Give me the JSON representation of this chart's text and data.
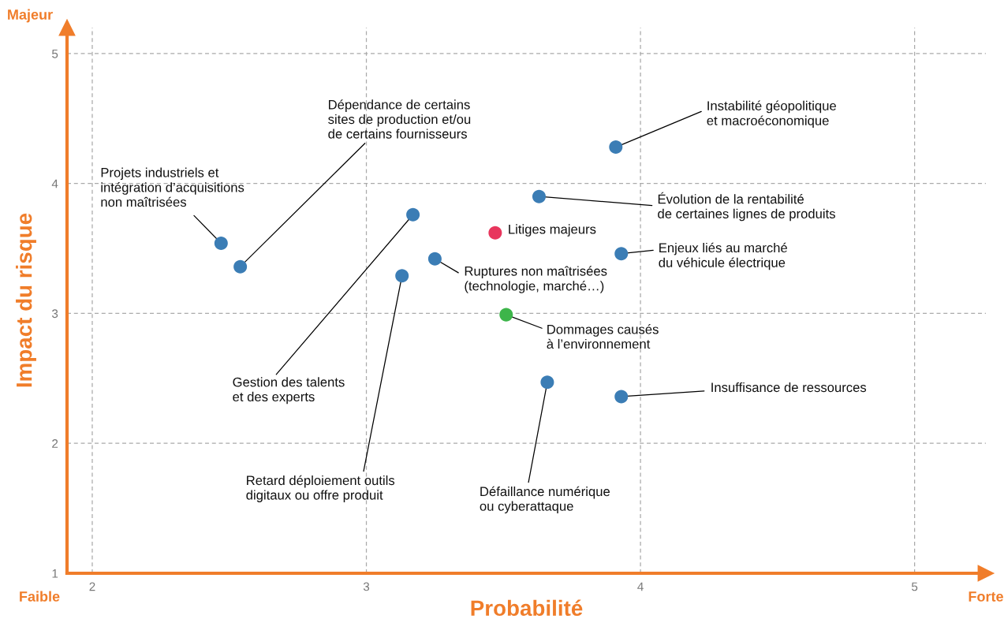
{
  "chart_data": {
    "type": "scatter",
    "xlabel": "Probabilité",
    "ylabel": "Impact du risque",
    "x": [
      2.47,
      2.54,
      3.17,
      3.13,
      3.25,
      3.47,
      3.51,
      3.66,
      3.63,
      3.91,
      3.93,
      3.93
    ],
    "values": [
      3.54,
      3.36,
      3.76,
      3.29,
      3.42,
      3.62,
      2.99,
      2.47,
      3.9,
      4.28,
      3.46,
      2.36
    ],
    "colors": [
      "#3b7db5",
      "#3b7db5",
      "#3b7db5",
      "#3b7db5",
      "#3b7db5",
      "#e8365d",
      "#3db54a",
      "#3b7db5",
      "#3b7db5",
      "#3b7db5",
      "#3b7db5",
      "#3b7db5"
    ],
    "marker": "circle",
    "grid": true,
    "xlim": [
      1.908,
      5.26
    ],
    "ylim": [
      1,
      5.2
    ],
    "xticks": [
      2,
      3,
      4,
      5
    ],
    "yticks": [
      1,
      2,
      3,
      4,
      5
    ],
    "annotations": [
      "Majeur",
      "Faible",
      "Forte",
      {
        "text": "Projets industriels et\nintégration d’acquisitions\nnon maîtrisées",
        "x": 2.47,
        "y": 3.54
      },
      {
        "text": "Dépendance de certains\nsites de production et/ou\nde certains fournisseurs",
        "x": 2.54,
        "y": 3.36
      },
      {
        "text": "Gestion des talents\net des experts",
        "x": 3.17,
        "y": 3.76
      },
      {
        "text": "Retard déploiement outils\ndigitaux ou offre produit",
        "x": 3.13,
        "y": 3.29
      },
      {
        "text": "Ruptures non maîtrisées\n(technologie, marché…)",
        "x": 3.25,
        "y": 3.42
      },
      {
        "text": "Litiges majeurs",
        "x": 3.47,
        "y": 3.62
      },
      {
        "text": "Dommages causés\nà l’environnement",
        "x": 3.51,
        "y": 2.99
      },
      {
        "text": "Défaillance numérique\nou cyberattaque",
        "x": 3.66,
        "y": 2.47
      },
      {
        "text": "Évolution de la rentabilité\nde certaines lignes de produits",
        "x": 3.63,
        "y": 3.9
      },
      {
        "text": "Instabilité géopolitique\net macroéconomique",
        "x": 3.91,
        "y": 4.28
      },
      {
        "text": "Enjeux liés au marché\ndu véhicule électrique",
        "x": 3.93,
        "y": 3.46
      },
      {
        "text": "Insuffisance de ressources",
        "x": 3.93,
        "y": 2.36
      }
    ]
  }
}
